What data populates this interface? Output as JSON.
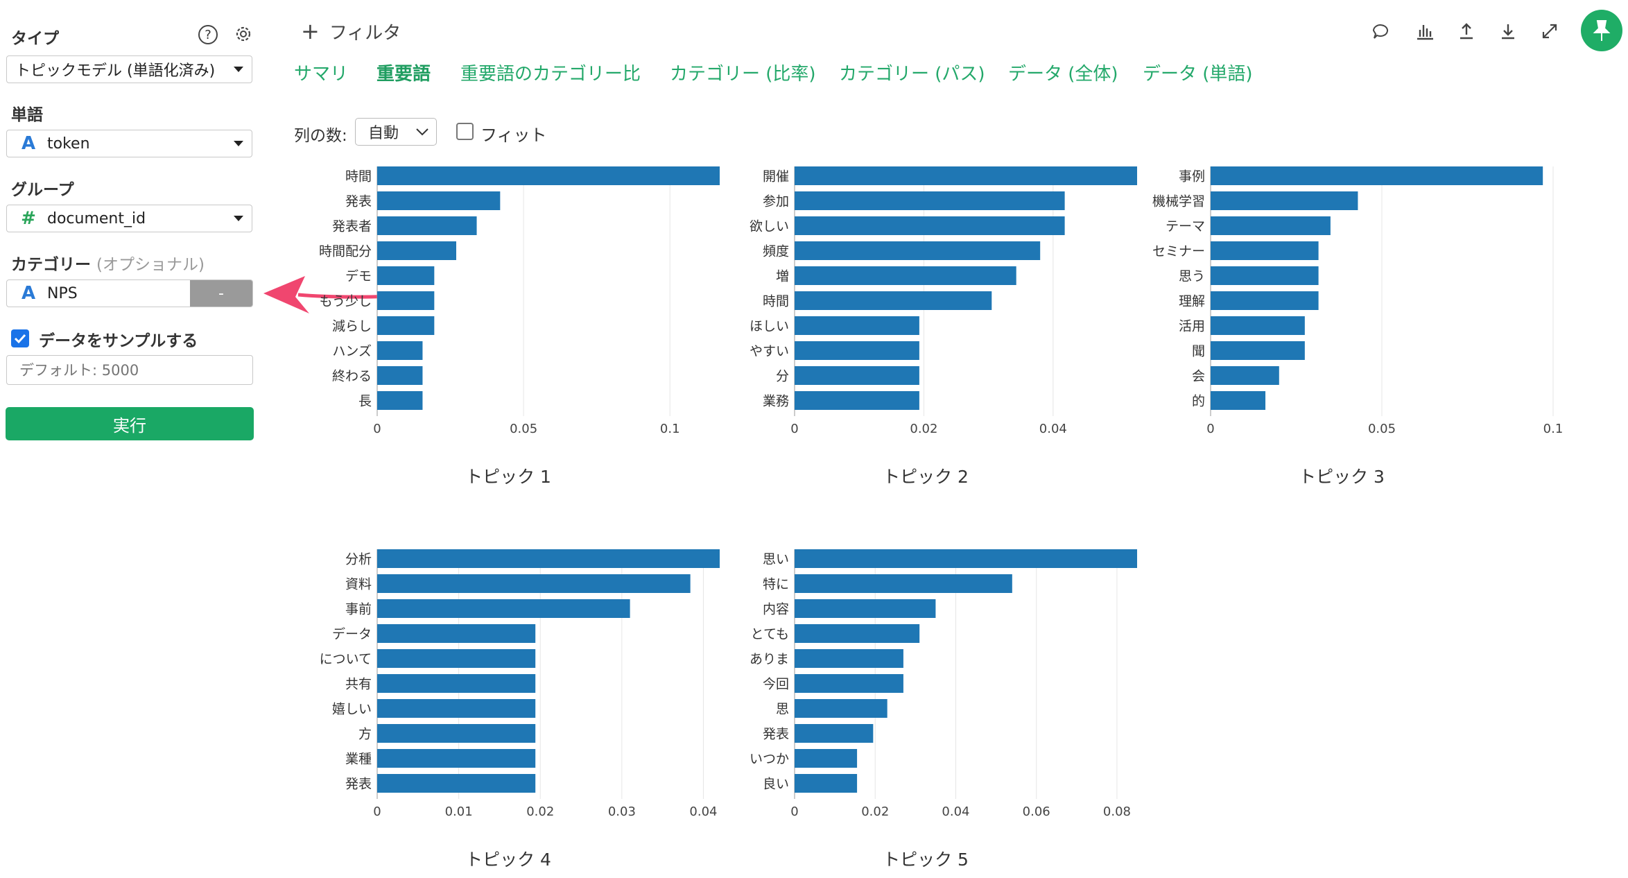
{
  "sidebar": {
    "type_label": "タイプ",
    "type_value": "トピックモデル (単語化済み)",
    "word_label": "単語",
    "word_value": "token",
    "word_icon": "A",
    "group_label": "グループ",
    "group_value": "document_id",
    "group_icon": "#",
    "category_label": "カテゴリー",
    "category_optional": "(オプショナル)",
    "category_value": "NPS",
    "category_icon": "A",
    "category_remove": "-",
    "sample_label": "データをサンプルする",
    "sample_checked": true,
    "sample_placeholder": "デフォルト: 5000",
    "run_label": "実行"
  },
  "filter": {
    "label": "フィルタ"
  },
  "tabs": [
    {
      "label": "サマリ",
      "active": false
    },
    {
      "label": "重要語",
      "active": true
    },
    {
      "label": "重要語のカテゴリー比",
      "active": false
    },
    {
      "label": "カテゴリー (比率)",
      "active": false
    },
    {
      "label": "カテゴリー (パス)",
      "active": false
    },
    {
      "label": "データ (全体)",
      "active": false
    },
    {
      "label": "データ (単語)",
      "active": false
    }
  ],
  "options": {
    "cols_label": "列の数:",
    "cols_value": "自動",
    "fit_label": "フィット"
  },
  "colors": {
    "bar": "#1f77b4",
    "accent": "#1fad66",
    "arrow": "#f0466f"
  },
  "chart_data": [
    {
      "type": "bar",
      "orientation": "horizontal",
      "title": "トピック 1",
      "categories": [
        "時間",
        "発表",
        "発表者",
        "時間配分",
        "デモ",
        "もう少し",
        "減らし",
        "ハンズ",
        "終わる",
        "長"
      ],
      "values": [
        0.117,
        0.042,
        0.034,
        0.027,
        0.0195,
        0.0195,
        0.0195,
        0.0155,
        0.0155,
        0.0155
      ],
      "xlim": [
        0,
        0.117
      ],
      "ticks": [
        0,
        0.05,
        0.1
      ],
      "tick_labels": [
        "0",
        "0.05",
        "0.1"
      ]
    },
    {
      "type": "bar",
      "orientation": "horizontal",
      "title": "トピック 2",
      "categories": [
        "開催",
        "参加",
        "欲しい",
        "頻度",
        "増",
        "時間",
        "ほしい",
        "やすい",
        "分",
        "業務"
      ],
      "values": [
        0.053,
        0.0418,
        0.0418,
        0.038,
        0.0343,
        0.0305,
        0.0193,
        0.0193,
        0.0193,
        0.0193
      ],
      "xlim": [
        0,
        0.053
      ],
      "ticks": [
        0,
        0.02,
        0.04
      ],
      "tick_labels": [
        "0",
        "0.02",
        "0.04"
      ]
    },
    {
      "type": "bar",
      "orientation": "horizontal",
      "title": "トピック 3",
      "categories": [
        "事例",
        "機械学習",
        "テーマ",
        "セミナー",
        "思う",
        "理解",
        "活用",
        "聞",
        "会",
        "的"
      ],
      "values": [
        0.097,
        0.043,
        0.035,
        0.0315,
        0.0315,
        0.0315,
        0.0275,
        0.0275,
        0.02,
        0.016
      ],
      "xlim": [
        0,
        0.1
      ],
      "ticks": [
        0,
        0.05,
        0.1
      ],
      "tick_labels": [
        "0",
        "0.05",
        "0.1"
      ]
    },
    {
      "type": "bar",
      "orientation": "horizontal",
      "title": "トピック 4",
      "categories": [
        "分析",
        "資料",
        "事前",
        "データ",
        "について",
        "共有",
        "嬉しい",
        "方",
        "業種",
        "発表"
      ],
      "values": [
        0.042,
        0.0384,
        0.031,
        0.0194,
        0.0194,
        0.0194,
        0.0194,
        0.0194,
        0.0194,
        0.0194
      ],
      "xlim": [
        0,
        0.042
      ],
      "ticks": [
        0,
        0.01,
        0.02,
        0.03,
        0.04
      ],
      "tick_labels": [
        "0",
        "0.01",
        "0.02",
        "0.03",
        "0.04"
      ]
    },
    {
      "type": "bar",
      "orientation": "horizontal",
      "title": "トピック 5",
      "categories": [
        "思い",
        "特に",
        "内容",
        "とても",
        "ありま",
        "今回",
        "思",
        "発表",
        "いつか",
        "良い"
      ],
      "values": [
        0.085,
        0.054,
        0.035,
        0.031,
        0.027,
        0.027,
        0.023,
        0.0195,
        0.0155,
        0.0155
      ],
      "xlim": [
        0,
        0.085
      ],
      "ticks": [
        0,
        0.02,
        0.04,
        0.06,
        0.08
      ],
      "tick_labels": [
        "0",
        "0.02",
        "0.04",
        "0.06",
        "0.08"
      ]
    }
  ]
}
